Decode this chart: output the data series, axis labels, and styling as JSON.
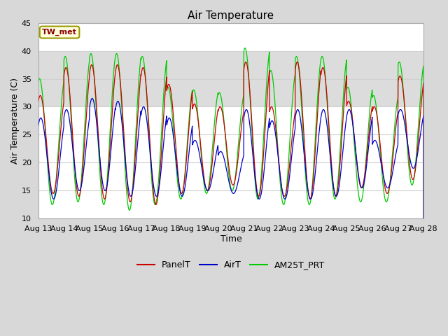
{
  "title": "Air Temperature",
  "xlabel": "Time",
  "ylabel": "Air Temperature (C)",
  "ylim": [
    10,
    45
  ],
  "x_tick_labels": [
    "Aug 13",
    "Aug 14",
    "Aug 15",
    "Aug 16",
    "Aug 17",
    "Aug 18",
    "Aug 19",
    "Aug 20",
    "Aug 21",
    "Aug 22",
    "Aug 23",
    "Aug 24",
    "Aug 25",
    "Aug 26",
    "Aug 27",
    "Aug 28"
  ],
  "yticks": [
    10,
    15,
    20,
    25,
    30,
    35,
    40,
    45
  ],
  "shaded_band": [
    30,
    40
  ],
  "station_label": "TW_met",
  "station_label_color": "#8B0000",
  "station_box_facecolor": "#FFFFE0",
  "station_box_edgecolor": "#999900",
  "line_PanelT_color": "#CC0000",
  "line_AirT_color": "#0000CC",
  "line_AM25T_color": "#00CC00",
  "legend_labels": [
    "PanelT",
    "AirT",
    "AM25T_PRT"
  ],
  "fig_bg_color": "#D8D8D8",
  "plot_bg_color": "#FFFFFF",
  "shaded_color": "#DCDCDC",
  "grid_color": "#D0D0D0",
  "title_fontsize": 11,
  "label_fontsize": 9,
  "tick_fontsize": 8,
  "legend_fontsize": 9,
  "n_days": 15,
  "daily_max_panel": [
    32,
    37,
    37.5,
    37.5,
    37,
    34,
    30.5,
    30,
    38,
    30,
    38,
    37,
    31,
    30,
    35.5
  ],
  "daily_max_air": [
    28,
    29.5,
    31.5,
    31,
    30,
    28,
    24,
    22,
    29.5,
    27.5,
    29.5,
    29.5,
    29.5,
    24,
    29.5
  ],
  "daily_max_am25": [
    35,
    39,
    39.5,
    39.5,
    39,
    33.5,
    33,
    32.5,
    40.5,
    36.5,
    39,
    39,
    33.5,
    32,
    38
  ],
  "daily_min_panel": [
    14.5,
    14,
    13.5,
    13,
    12.5,
    14.5,
    15,
    16,
    14,
    14,
    13.5,
    14,
    15.5,
    14.5,
    17
  ],
  "daily_min_air": [
    13.5,
    15,
    15,
    14,
    14,
    14,
    15,
    14.5,
    13.5,
    13.5,
    13.5,
    14,
    15.5,
    15.5,
    19
  ],
  "daily_min_am25": [
    12.5,
    13,
    12.5,
    11.5,
    12.5,
    13.5,
    14.5,
    15,
    13.5,
    12.5,
    12.5,
    13.5,
    13,
    13,
    16
  ]
}
